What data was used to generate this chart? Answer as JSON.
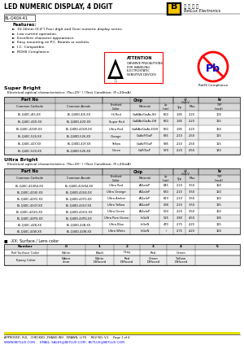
{
  "title": "LED NUMERIC DISPLAY, 4 DIGIT",
  "part_number": "BL-Q40X-41",
  "features": [
    "10.16mm (0.4\") Four digit and Over numeric display series.",
    "Low current operation.",
    "Excellent character appearance.",
    "Easy mounting on P.C. Boards or sockets.",
    "I.C. Compatible.",
    "ROHS Compliance."
  ],
  "super_bright_title": "Super Bright",
  "super_bright_subtitle": "   Electrical-optical characteristics: (Ta=25° ) (Test Condition: IF=20mA)",
  "sb_col_headers": [
    "Common Cathode",
    "Common Anode",
    "Emitted Color",
    "Material",
    "λp (nm)",
    "Typ",
    "Max",
    "TYP.(mcd)"
  ],
  "sb_rows": [
    [
      "BL-Q40C-4I5-XX",
      "BL-Q40D-4I5-XX",
      "Hi Red",
      "GaAlAs/GaAs.SH",
      "660",
      "1.85",
      "2.20",
      "105"
    ],
    [
      "BL-Q40C-42D-XX",
      "BL-Q40D-42D-XX",
      "Super Red",
      "GaAlAs/GaAs.DH",
      "660",
      "1.85",
      "2.20",
      "115"
    ],
    [
      "BL-Q40C-42UR-XX",
      "BL-Q40D-42UR-XX",
      "Ultra Red",
      "GaAlAs/GaAs.DOH",
      "660",
      "1.85",
      "2.20",
      "160"
    ],
    [
      "BL-Q40C-526-XX",
      "BL-Q40D-526-XX",
      "Orange",
      "GaAsP/GaP",
      "635",
      "2.10",
      "2.50",
      "115"
    ],
    [
      "BL-Q40C-42Y-XX",
      "BL-Q40D-42Y-XX",
      "Yellow",
      "GaAsP/GaP",
      "585",
      "2.10",
      "2.50",
      "115"
    ],
    [
      "BL-Q40C-520-XX",
      "BL-Q40D-520-XX",
      "Green",
      "GaP/GaP",
      "570",
      "2.20",
      "2.50",
      "120"
    ]
  ],
  "ultra_bright_title": "Ultra Bright",
  "ultra_bright_subtitle": "   Electrical-optical characteristics: (Ta=25° ) (Test Condition: IF=20mA)",
  "ub_col_headers": [
    "Common Cathode",
    "Common Anode",
    "Emitted Color",
    "Material",
    "λP (mm)",
    "Typ",
    "Max",
    "TYP.(mcd)"
  ],
  "ub_rows": [
    [
      "BL-Q40C-42UR4-XX",
      "BL-Q40D-42UR4-XX",
      "Ultra Red",
      "AlGaInP",
      "645",
      "2.10",
      "3.50",
      "160"
    ],
    [
      "BL-Q40C-42UE-XX",
      "BL-Q40D-42UE-XX",
      "Ultra Orange",
      "AlGaInP",
      "630",
      "2.10",
      "3.50",
      "160"
    ],
    [
      "BL-Q40C-42YO-XX",
      "BL-Q40D-42YO-XX",
      "Ultra Amber",
      "AlGaInP",
      "619",
      "2.10",
      "3.50",
      "160"
    ],
    [
      "BL-Q40C-42UY-XX",
      "BL-Q40D-42UY-XX",
      "Ultra Yellow",
      "AlGaInP",
      "590",
      "2.10",
      "3.50",
      "135"
    ],
    [
      "BL-Q40C-42UG-XX",
      "BL-Q40D-42UG-XX",
      "Ultra Green",
      "AlGaInP",
      "574",
      "2.20",
      "3.50",
      "160"
    ],
    [
      "BL-Q40C-42PG-XX",
      "BL-Q40D-42PG-XX",
      "Ultra Pure Green",
      "InGaN",
      "525",
      "3.80",
      "4.50",
      "195"
    ],
    [
      "BL-Q40C-42B-XX",
      "BL-Q40D-42B-XX",
      "Ultra Blue",
      "InGaN",
      "470",
      "2.75",
      "4.20",
      "125"
    ],
    [
      "BL-Q40C-42W-XX",
      "BL-Q40D-42W-XX",
      "Ultra White",
      "InGaN",
      "/",
      "2.75",
      "4.20",
      "160"
    ]
  ],
  "note": "■  -XX: Surface / Lens color",
  "color_table_headers": [
    "Number",
    "0",
    "1",
    "2",
    "3",
    "4",
    "5"
  ],
  "color_row1": [
    "Ref Surface Color",
    "White",
    "Black",
    "Gray",
    "Red",
    "Green",
    ""
  ],
  "color_row2_label": "Epoxy Color",
  "color_row2_vals": [
    "Water\nclear",
    "White\nDiffused",
    "Red\nDiffused",
    "Green\nDiffused",
    "Yellow\nDiffused",
    ""
  ],
  "footer_left": "APPROVED: XUL   CHECKED: ZHANG WH   DRAWN: LI FS     REV NO: V.2     Page 1 of 4",
  "footer_url": "WWW.BETLUX.COM     EMAIL: SALES@BETLUX.COM , BETLUX@BETLUX.COM",
  "bg_color": "#ffffff",
  "header_bg": "#c8c8c8",
  "subheader_bg": "#d8d8d8",
  "row_alt_bg": "#ebebeb"
}
